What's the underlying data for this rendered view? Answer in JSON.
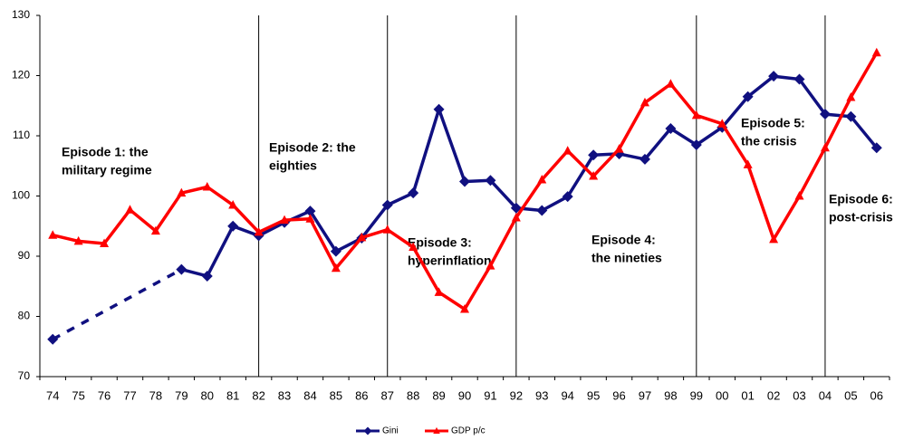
{
  "chart_data": {
    "type": "line",
    "categories": [
      "74",
      "75",
      "76",
      "77",
      "78",
      "79",
      "80",
      "81",
      "82",
      "83",
      "84",
      "85",
      "86",
      "87",
      "88",
      "89",
      "90",
      "91",
      "92",
      "93",
      "94",
      "95",
      "96",
      "97",
      "98",
      "99",
      "00",
      "01",
      "02",
      "03",
      "04",
      "05",
      "06"
    ],
    "series": [
      {
        "name": "Gini",
        "color": "#101080",
        "marker": "diamond",
        "gap_style": "dashed",
        "values": [
          76.2,
          null,
          null,
          null,
          null,
          87.8,
          86.7,
          95.0,
          93.4,
          95.6,
          97.5,
          90.8,
          93.0,
          98.5,
          100.5,
          114.4,
          102.4,
          102.6,
          98.0,
          97.6,
          99.9,
          106.8,
          107.0,
          106.1,
          111.2,
          108.5,
          111.4,
          116.5,
          119.9,
          119.4,
          113.6,
          113.2,
          108.0
        ]
      },
      {
        "name": "GDP p/c",
        "color": "#ff0000",
        "marker": "triangle",
        "values": [
          93.5,
          92.5,
          92.1,
          97.7,
          94.2,
          100.5,
          101.5,
          98.5,
          94.0,
          96.0,
          96.2,
          88.0,
          93.1,
          94.4,
          91.5,
          84.0,
          81.2,
          88.4,
          96.4,
          102.7,
          107.5,
          103.3,
          107.8,
          115.5,
          118.6,
          113.4,
          112.0,
          105.2,
          92.8,
          100.0,
          108.0,
          116.4,
          123.8
        ]
      }
    ],
    "ylim": [
      70,
      130
    ],
    "yticks": [
      70,
      80,
      90,
      100,
      110,
      120,
      130
    ],
    "dividers": [
      "82",
      "87",
      "92",
      "99",
      "04"
    ],
    "annotations": [
      {
        "lines": [
          "Episode 1: the",
          "military regime"
        ]
      },
      {
        "lines": [
          "Episode 2: the",
          "eighties"
        ]
      },
      {
        "lines": [
          "Episode 3:",
          "hyperinflation"
        ]
      },
      {
        "lines": [
          "Episode 4:",
          "the nineties"
        ]
      },
      {
        "lines": [
          "Episode 5:",
          "the crisis"
        ]
      },
      {
        "lines": [
          "Episode 6:",
          "post-crisis"
        ]
      }
    ],
    "legend": "bottom"
  }
}
